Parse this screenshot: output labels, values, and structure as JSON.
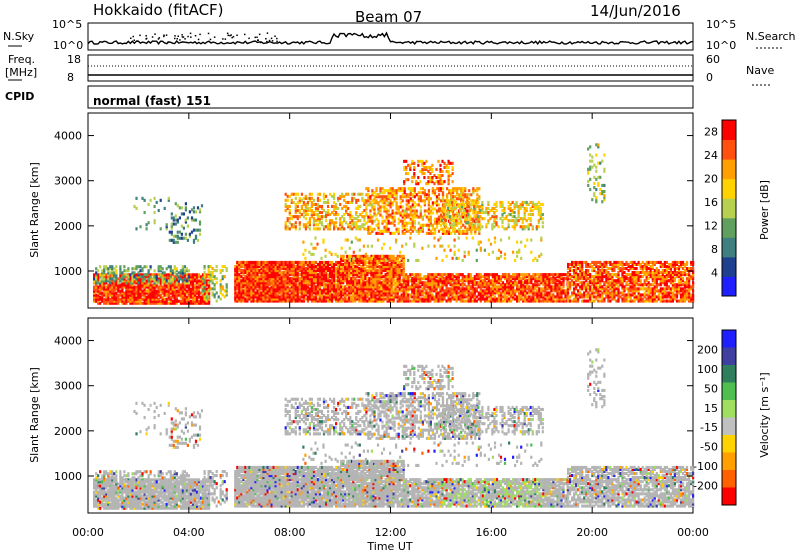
{
  "header": {
    "station": "Hokkaido (fitACF)",
    "beam": "Beam 07",
    "date": "14/Jun/2016"
  },
  "strips": {
    "nsky_label": "N.Sky",
    "nsky_ticks": [
      "10^5",
      "10^0"
    ],
    "nsearch_label": "N.Search",
    "nsearch_ticks": [
      "10^5",
      "10^0"
    ],
    "freq_label": "Freq.",
    "freq_unit": "[MHz]",
    "freq_ticks": [
      "18",
      "8"
    ],
    "nave_label": "Nave",
    "nave_ticks": [
      "60",
      "0"
    ],
    "cpid_label": "CPID",
    "cpid_text": "normal (fast) 151"
  },
  "colors": {
    "power_scale": [
      "#1f1fff",
      "#1f3f8f",
      "#3f7f7f",
      "#5fa05f",
      "#b8d050",
      "#ffd200",
      "#ffa000",
      "#ff5010",
      "#ff0000"
    ],
    "velocity_scale": [
      "#1f1fff",
      "#3f3f9f",
      "#2f7f5f",
      "#4fbf4f",
      "#9fdf5f",
      "#c0c0c0",
      "#ffd200",
      "#ffa000",
      "#ff6000",
      "#ff0000"
    ],
    "ground_scatter": "#b4b4b4"
  },
  "chart_data": [
    {
      "type": "heatmap",
      "name_panel": "power",
      "ylabel": "Slant Range [km]",
      "y_ticks": [
        "1000",
        "2000",
        "3000",
        "4000"
      ],
      "ylim": [
        180,
        4500
      ],
      "xlim": [
        0,
        24
      ],
      "colorbar_label": "Power [dB]",
      "colorbar_ticks": [
        "4",
        "8",
        "12",
        "16",
        "20",
        "24",
        "28"
      ],
      "colorbar_range": [
        0,
        30
      ]
    },
    {
      "type": "heatmap",
      "name_panel": "velocity",
      "ylabel": "Slant Range [km]",
      "y_ticks": [
        "1000",
        "2000",
        "3000",
        "4000"
      ],
      "ylim": [
        180,
        4500
      ],
      "xlim": [
        0,
        24
      ],
      "xlabel": "Time UT",
      "x_ticks": [
        "00:00",
        "04:00",
        "08:00",
        "12:00",
        "16:00",
        "20:00",
        "00:00"
      ],
      "colorbar_label": "Velocity [m s⁻¹]",
      "colorbar_ticks": [
        "200",
        "100",
        "50",
        "15",
        "-15",
        "-50",
        "-100",
        "-200"
      ]
    }
  ]
}
